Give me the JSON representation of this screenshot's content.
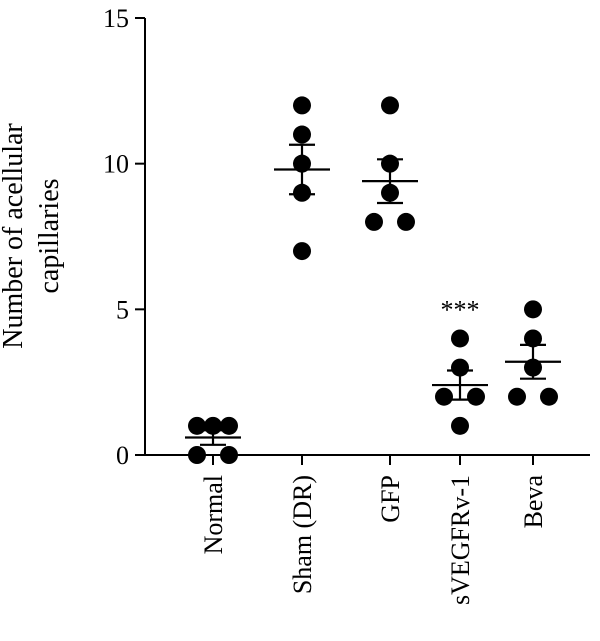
{
  "chart_data": {
    "type": "scatter",
    "ylabel": "Number of acellular capillaries",
    "ylim": [
      0,
      15
    ],
    "yticks": [
      0,
      5,
      10,
      15
    ],
    "grid": false,
    "legend": "none",
    "categories": [
      "Normal",
      "Sham (DR)",
      "GFP",
      "sVEGFRv-1",
      "Beva"
    ],
    "groups": [
      {
        "category": "Normal",
        "values": [
          1,
          1,
          1,
          0,
          0
        ],
        "mean": 0.6,
        "sem": 0.25,
        "annotation": ""
      },
      {
        "category": "Sham (DR)",
        "values": [
          12,
          11,
          10,
          9,
          7
        ],
        "mean": 9.8,
        "sem": 0.85,
        "annotation": ""
      },
      {
        "category": "GFP",
        "values": [
          12,
          10,
          9,
          8,
          8
        ],
        "mean": 9.4,
        "sem": 0.75,
        "annotation": ""
      },
      {
        "category": "sVEGFRv-1",
        "values": [
          4,
          3,
          2,
          2,
          1
        ],
        "mean": 2.4,
        "sem": 0.5,
        "annotation": "***"
      },
      {
        "category": "Beva",
        "values": [
          5,
          4,
          3,
          2,
          2
        ],
        "mean": 3.2,
        "sem": 0.58,
        "annotation": ""
      }
    ],
    "colors": {
      "points": "#000000",
      "axis": "#000000"
    }
  }
}
